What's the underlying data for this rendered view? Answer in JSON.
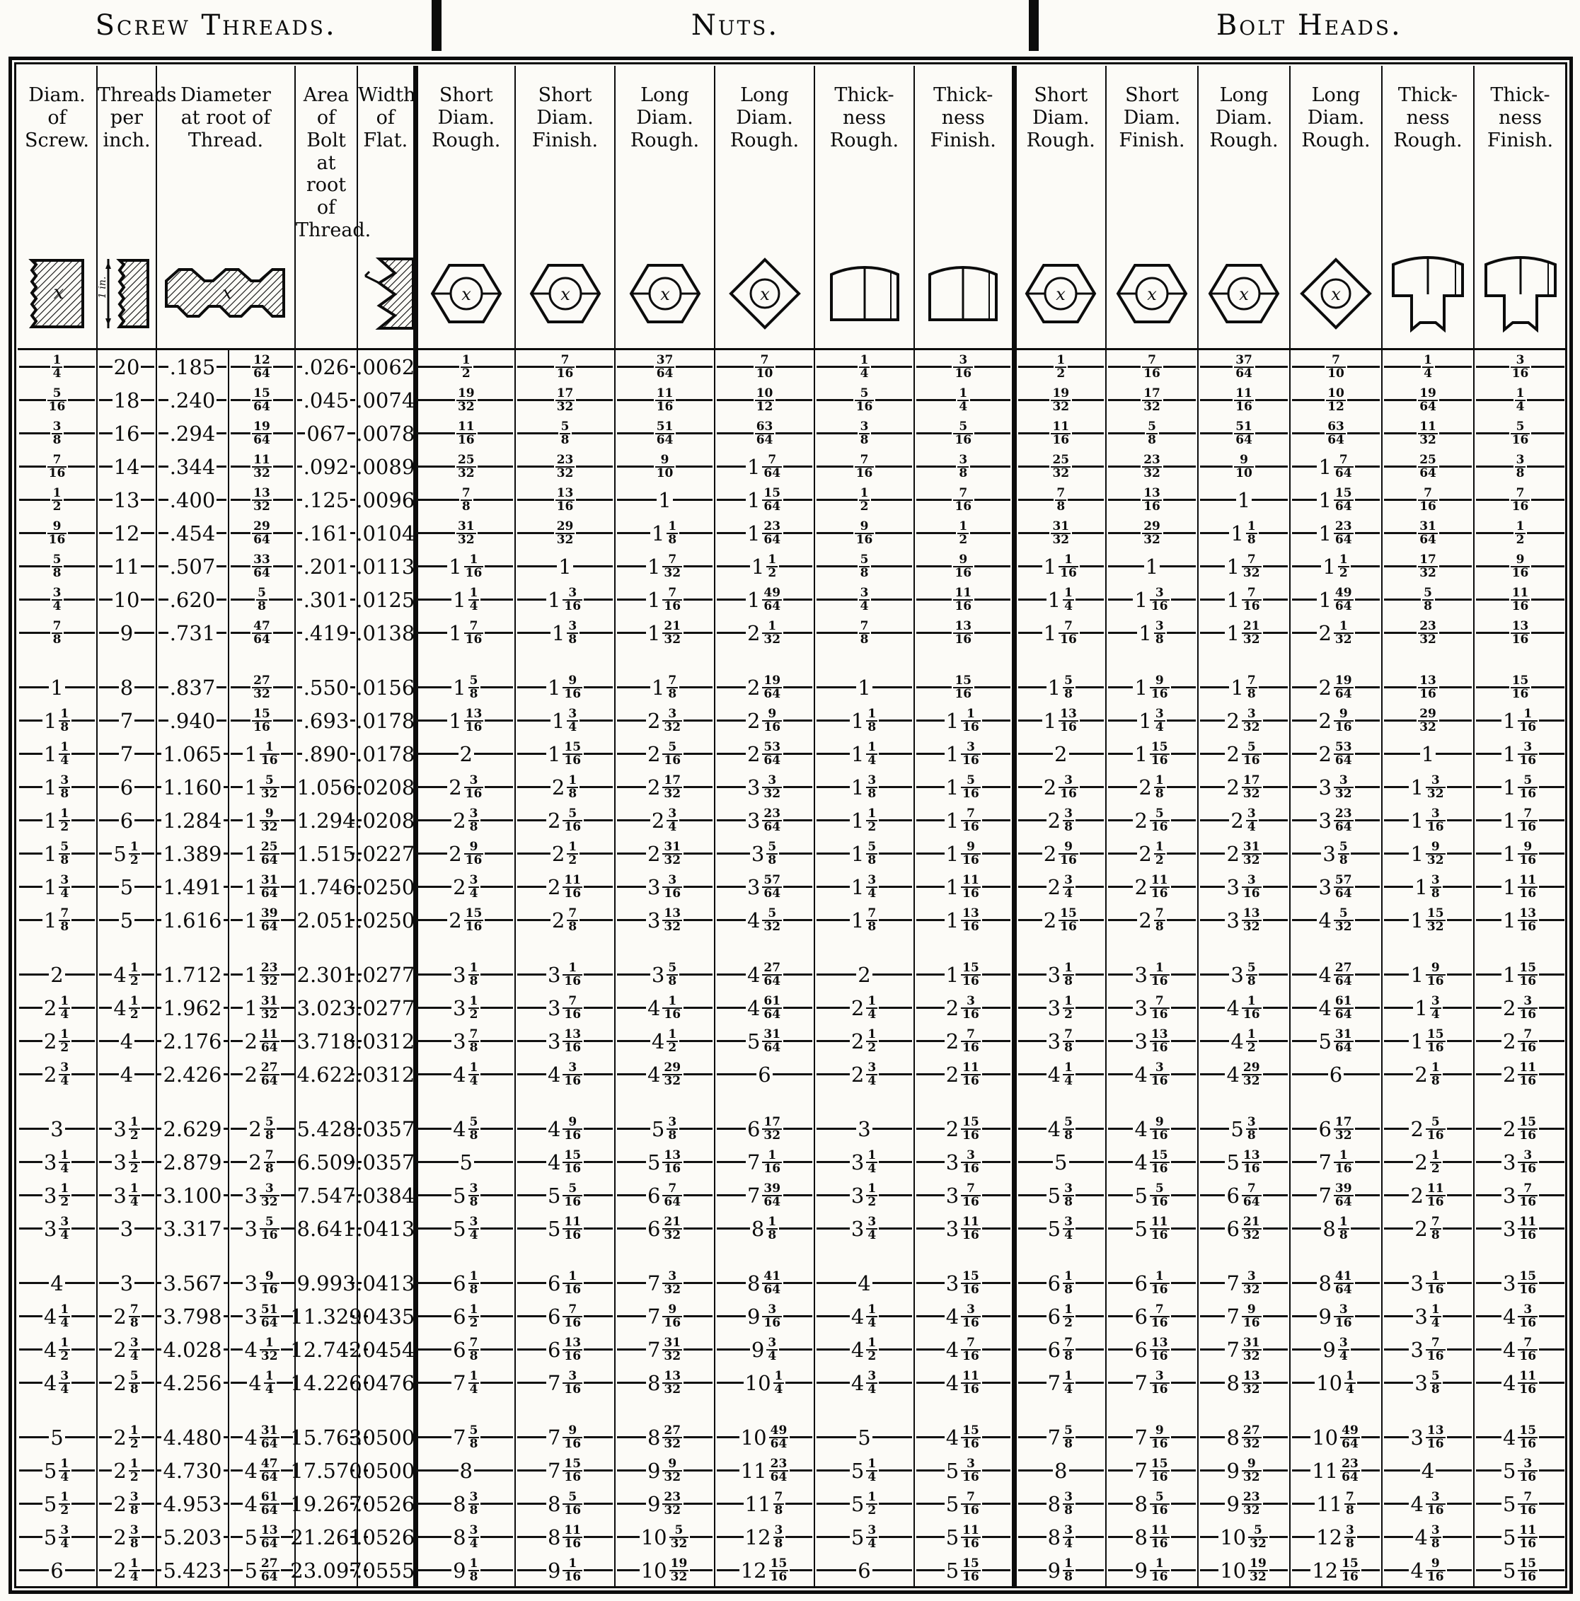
{
  "ink_color": "#0c0c0c",
  "paper_color": "#fcfbf7",
  "sections": [
    {
      "title": "Screw Threads."
    },
    {
      "title": "Nuts."
    },
    {
      "title": "Bolt Heads."
    }
  ],
  "header": {
    "columns": [
      {
        "label": "Diam.\nof\nScrew.",
        "icon": "screw-section-icon",
        "span": 1,
        "group": "screw"
      },
      {
        "label": "Threads\nper\ninch.",
        "icon": "thread-pitch-icon",
        "span": 1,
        "group": "screw"
      },
      {
        "label": "Diameter\nat root of\nThread.",
        "icon": "thread-profile-icon",
        "span": 2,
        "group": "screw"
      },
      {
        "label": "Area\nof Bolt\nat root\nof\nThread.",
        "icon": "none",
        "span": 1,
        "group": "screw"
      },
      {
        "label": "Width\nof\nFlat.",
        "icon": "thread-flat-icon",
        "span": 1,
        "group": "screw"
      },
      {
        "label": "Short\nDiam.\nRough.",
        "icon": "hex-nut-icon",
        "span": 1,
        "group": "nuts",
        "section_start": true
      },
      {
        "label": "Short\nDiam.\nFinish.",
        "icon": "hex-nut-icon",
        "span": 1,
        "group": "nuts"
      },
      {
        "label": "Long\nDiam.\nRough.",
        "icon": "hex-nut-icon",
        "span": 1,
        "group": "nuts"
      },
      {
        "label": "Long\nDiam.\nRough.",
        "icon": "square-nut-icon",
        "span": 1,
        "group": "nuts"
      },
      {
        "label": "Thick-\nness\nRough.",
        "icon": "nut-side-icon",
        "span": 1,
        "group": "nuts"
      },
      {
        "label": "Thick-\nness\nFinish.",
        "icon": "nut-side-icon",
        "span": 1,
        "group": "nuts"
      },
      {
        "label": "Short\nDiam.\nRough.",
        "icon": "hex-nut-icon",
        "span": 1,
        "group": "bolt-heads",
        "section_start": true
      },
      {
        "label": "Short\nDiam.\nFinish.",
        "icon": "hex-nut-icon",
        "span": 1,
        "group": "bolt-heads"
      },
      {
        "label": "Long\nDiam.\nRough.",
        "icon": "hex-nut-icon",
        "span": 1,
        "group": "bolt-heads"
      },
      {
        "label": "Long\nDiam.\nRough.",
        "icon": "square-nut-icon",
        "span": 1,
        "group": "bolt-heads"
      },
      {
        "label": "Thick-\nness\nRough.",
        "icon": "bolt-side-icon",
        "span": 1,
        "group": "bolt-heads"
      },
      {
        "label": "Thick-\nness\nFinish.",
        "icon": "bolt-side-icon",
        "span": 1,
        "group": "bolt-heads"
      }
    ]
  },
  "table": {
    "group_breaks_after": [
      8,
      16,
      20,
      24,
      28
    ],
    "rows": [
      [
        "1/4",
        "20",
        ".185",
        "12/64",
        ".026",
        ".0062",
        "1/2",
        "7/16",
        "37/64",
        "7/10",
        "1/4",
        "3/16",
        "1/2",
        "7/16",
        "37/64",
        "7/10",
        "1/4",
        "3/16"
      ],
      [
        "5/16",
        "18",
        ".240",
        "15/64",
        ".045",
        ".0074",
        "19/32",
        "17/32",
        "11/16",
        "10/12",
        "5/16",
        "1/4",
        "19/32",
        "17/32",
        "11/16",
        "10/12",
        "19/64",
        "1/4"
      ],
      [
        "3/8",
        "16",
        ".294",
        "19/64",
        "067",
        ".0078",
        "11/16",
        "5/8",
        "51/64",
        "63/64",
        "3/8",
        "5/16",
        "11/16",
        "5/8",
        "51/64",
        "63/64",
        "11/32",
        "5/16"
      ],
      [
        "7/16",
        "14",
        ".344",
        "11/32",
        ".092",
        ".0089",
        "25/32",
        "23/32",
        "9/10",
        "1 7/64",
        "7/16",
        "3/8",
        "25/32",
        "23/32",
        "9/10",
        "1 7/64",
        "25/64",
        "3/8"
      ],
      [
        "1/2",
        "13",
        ".400",
        "13/32",
        ".125",
        ".0096",
        "7/8",
        "13/16",
        "1",
        "1 15/64",
        "1/2",
        "7/16",
        "7/8",
        "13/16",
        "1",
        "1 15/64",
        "7/16",
        "7/16"
      ],
      [
        "9/16",
        "12",
        ".454",
        "29/64",
        ".161",
        ".0104",
        "31/32",
        "29/32",
        "1 1/8",
        "1 23/64",
        "9/16",
        "1/2",
        "31/32",
        "29/32",
        "1 1/8",
        "1 23/64",
        "31/64",
        "1/2"
      ],
      [
        "5/8",
        "11",
        ".507",
        "33/64",
        ".201",
        ".0113",
        "1 1/16",
        "1",
        "1 7/32",
        "1 1/2",
        "5/8",
        "9/16",
        "1 1/16",
        "1",
        "1 7/32",
        "1 1/2",
        "17/32",
        "9/16"
      ],
      [
        "3/4",
        "10",
        ".620",
        "5/8",
        ".301",
        ".0125",
        "1 1/4",
        "1 3/16",
        "1 7/16",
        "1 49/64",
        "3/4",
        "11/16",
        "1 1/4",
        "1 3/16",
        "1 7/16",
        "1 49/64",
        "5/8",
        "11/16"
      ],
      [
        "7/8",
        "9",
        ".731",
        "47/64",
        ".419",
        ".0138",
        "1 7/16",
        "1 3/8",
        "1 21/32",
        "2 1/32",
        "7/8",
        "13/16",
        "1 7/16",
        "1 3/8",
        "1 21/32",
        "2 1/32",
        "23/32",
        "13/16"
      ],
      [
        "1",
        "8",
        ".837",
        "27/32",
        ".550",
        ".0156",
        "1 5/8",
        "1 9/16",
        "1 7/8",
        "2 19/64",
        "1",
        "15/16",
        "1 5/8",
        "1 9/16",
        "1 7/8",
        "2 19/64",
        "13/16",
        "15/16"
      ],
      [
        "1 1/8",
        "7",
        ".940",
        "15/16",
        ".693",
        ".0178",
        "1 13/16",
        "1 3/4",
        "2 3/32",
        "2 9/16",
        "1 1/8",
        "1 1/16",
        "1 13/16",
        "1 3/4",
        "2 3/32",
        "2 9/16",
        "29/32",
        "1 1/16"
      ],
      [
        "1 1/4",
        "7",
        "1.065",
        "1 1/16",
        ".890",
        ".0178",
        "2",
        "1 15/16",
        "2 5/16",
        "2 53/64",
        "1 1/4",
        "1 3/16",
        "2",
        "1 15/16",
        "2 5/16",
        "2 53/64",
        "1",
        "1 3/16"
      ],
      [
        "1 3/8",
        "6",
        "1.160",
        "1 5/32",
        "1.056",
        ".0208",
        "2 3/16",
        "2 1/8",
        "2 17/32",
        "3 3/32",
        "1 3/8",
        "1 5/16",
        "2 3/16",
        "2 1/8",
        "2 17/32",
        "3 3/32",
        "1 3/32",
        "1 5/16"
      ],
      [
        "1 1/2",
        "6",
        "1.284",
        "1 9/32",
        "1.294",
        ".0208",
        "2 3/8",
        "2 5/16",
        "2 3/4",
        "3 23/64",
        "1 1/2",
        "1 7/16",
        "2 3/8",
        "2 5/16",
        "2 3/4",
        "3 23/64",
        "1 3/16",
        "1 7/16"
      ],
      [
        "1 5/8",
        "5 1/2",
        "1.389",
        "1 25/64",
        "1.515",
        ".0227",
        "2 9/16",
        "2 1/2",
        "2 31/32",
        "3 5/8",
        "1 5/8",
        "1 9/16",
        "2 9/16",
        "2 1/2",
        "2 31/32",
        "3 5/8",
        "1 9/32",
        "1 9/16"
      ],
      [
        "1 3/4",
        "5",
        "1.491",
        "1 31/64",
        "1.746",
        ".0250",
        "2 3/4",
        "2 11/16",
        "3 3/16",
        "3 57/64",
        "1 3/4",
        "1 11/16",
        "2 3/4",
        "2 11/16",
        "3 3/16",
        "3 57/64",
        "1 3/8",
        "1 11/16"
      ],
      [
        "1 7/8",
        "5",
        "1.616",
        "1 39/64",
        "2.051",
        ".0250",
        "2 15/16",
        "2 7/8",
        "3 13/32",
        "4 5/32",
        "1 7/8",
        "1 13/16",
        "2 15/16",
        "2 7/8",
        "3 13/32",
        "4 5/32",
        "1 15/32",
        "1 13/16"
      ],
      [
        "2",
        "4 1/2",
        "1.712",
        "1 23/32",
        "2.301",
        ".0277",
        "3 1/8",
        "3 1/16",
        "3 5/8",
        "4 27/64",
        "2",
        "1 15/16",
        "3 1/8",
        "3 1/16",
        "3 5/8",
        "4 27/64",
        "1 9/16",
        "1 15/16"
      ],
      [
        "2 1/4",
        "4 1/2",
        "1.962",
        "1 31/32",
        "3.023",
        ".0277",
        "3 1/2",
        "3 7/16",
        "4 1/16",
        "4 61/64",
        "2 1/4",
        "2 3/16",
        "3 1/2",
        "3 7/16",
        "4 1/16",
        "4 61/64",
        "1 3/4",
        "2 3/16"
      ],
      [
        "2 1/2",
        "4",
        "2.176",
        "2 11/64",
        "3.718",
        ".0312",
        "3 7/8",
        "3 13/16",
        "4 1/2",
        "5 31/64",
        "2 1/2",
        "2 7/16",
        "3 7/8",
        "3 13/16",
        "4 1/2",
        "5 31/64",
        "1 15/16",
        "2 7/16"
      ],
      [
        "2 3/4",
        "4",
        "2.426",
        "2 27/64",
        "4.622",
        ".0312",
        "4 1/4",
        "4 3/16",
        "4 29/32",
        "6",
        "2 3/4",
        "2 11/16",
        "4 1/4",
        "4 3/16",
        "4 29/32",
        "6",
        "2 1/8",
        "2 11/16"
      ],
      [
        "3",
        "3 1/2",
        "2.629",
        "2 5/8",
        "5.428",
        ".0357",
        "4 5/8",
        "4 9/16",
        "5 3/8",
        "6 17/32",
        "3",
        "2 15/16",
        "4 5/8",
        "4 9/16",
        "5 3/8",
        "6 17/32",
        "2 5/16",
        "2 15/16"
      ],
      [
        "3 1/4",
        "3 1/2",
        "2.879",
        "2 7/8",
        "6.509",
        ".0357",
        "5",
        "4 15/16",
        "5 13/16",
        "7 1/16",
        "3 1/4",
        "3 3/16",
        "5",
        "4 15/16",
        "5 13/16",
        "7 1/16",
        "2 1/2",
        "3 3/16"
      ],
      [
        "3 1/2",
        "3 1/4",
        "3.100",
        "3 3/32",
        "7.547",
        ".0384",
        "5 3/8",
        "5 5/16",
        "6 7/64",
        "7 39/64",
        "3 1/2",
        "3 7/16",
        "5 3/8",
        "5 5/16",
        "6 7/64",
        "7 39/64",
        "2 11/16",
        "3 7/16"
      ],
      [
        "3 3/4",
        "3",
        "3.317",
        "3 5/16",
        "8.641",
        ".0413",
        "5 3/4",
        "5 11/16",
        "6 21/32",
        "8 1/8",
        "3 3/4",
        "3 11/16",
        "5 3/4",
        "5 11/16",
        "6 21/32",
        "8 1/8",
        "2 7/8",
        "3 11/16"
      ],
      [
        "4",
        "3",
        "3.567",
        "3 9/16",
        "9.993",
        ".0413",
        "6 1/8",
        "6 1/16",
        "7 3/32",
        "8 41/64",
        "4",
        "3 15/16",
        "6 1/8",
        "6 1/16",
        "7 3/32",
        "8 41/64",
        "3 1/16",
        "3 15/16"
      ],
      [
        "4 1/4",
        "2 7/8",
        "3.798",
        "3 51/64",
        "11.329",
        ".0435",
        "6 1/2",
        "6 7/16",
        "7 9/16",
        "9 3/16",
        "4 1/4",
        "4 3/16",
        "6 1/2",
        "6 7/16",
        "7 9/16",
        "9 3/16",
        "3 1/4",
        "4 3/16"
      ],
      [
        "4 1/2",
        "2 3/4",
        "4.028",
        "4 1/32",
        "12.742",
        ".0454",
        "6 7/8",
        "6 13/16",
        "7 31/32",
        "9 3/4",
        "4 1/2",
        "4 7/16",
        "6 7/8",
        "6 13/16",
        "7 31/32",
        "9 3/4",
        "3 7/16",
        "4 7/16"
      ],
      [
        "4 3/4",
        "2 5/8",
        "4.256",
        "4 1/4",
        "14.226",
        ".0476",
        "7 1/4",
        "7 3/16",
        "8 13/32",
        "10 1/4",
        "4 3/4",
        "4 11/16",
        "7 1/4",
        "7 3/16",
        "8 13/32",
        "10 1/4",
        "3 5/8",
        "4 11/16"
      ],
      [
        "5",
        "2 1/2",
        "4.480",
        "4 31/64",
        "15.763",
        ".0500",
        "7 5/8",
        "7 9/16",
        "8 27/32",
        "10 49/64",
        "5",
        "4 15/16",
        "7 5/8",
        "7 9/16",
        "8 27/32",
        "10 49/64",
        "3 13/16",
        "4 15/16"
      ],
      [
        "5 1/4",
        "2 1/2",
        "4.730",
        "4 47/64",
        "17.570",
        ".0500",
        "8",
        "7 15/16",
        "9 9/32",
        "11 23/64",
        "5 1/4",
        "5 3/16",
        "8",
        "7 15/16",
        "9 9/32",
        "11 23/64",
        "4",
        "5 3/16"
      ],
      [
        "5 1/2",
        "2 3/8",
        "4.953",
        "4 61/64",
        "19.267",
        ".0526",
        "8 3/8",
        "8 5/16",
        "9 23/32",
        "11 7/8",
        "5 1/2",
        "5 7/16",
        "8 3/8",
        "8 5/16",
        "9 23/32",
        "11 7/8",
        "4 3/16",
        "5 7/16"
      ],
      [
        "5 3/4",
        "2 3/8",
        "5.203",
        "5 13/64",
        "21.261",
        ".0526",
        "8 3/4",
        "8 11/16",
        "10 5/32",
        "12 3/8",
        "5 3/4",
        "5 11/16",
        "8 3/4",
        "8 11/16",
        "10 5/32",
        "12 3/8",
        "4 3/8",
        "5 11/16"
      ],
      [
        "6",
        "2 1/4",
        "5.423",
        "5 27/64",
        "23.097",
        ".0555",
        "9 1/8",
        "9 1/16",
        "10 19/32",
        "12 15/16",
        "6",
        "5 15/16",
        "9 1/8",
        "9 1/16",
        "10 19/32",
        "12 15/16",
        "4 9/16",
        "5 15/16"
      ]
    ]
  }
}
